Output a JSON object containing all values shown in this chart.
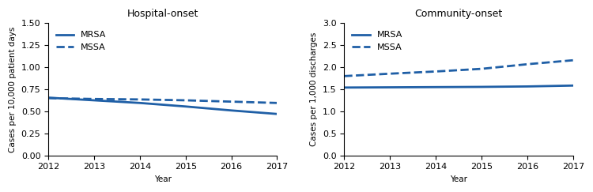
{
  "years": [
    2012,
    2013,
    2014,
    2015,
    2016,
    2017
  ],
  "hospital_mrsa": [
    0.655,
    0.625,
    0.595,
    0.555,
    0.51,
    0.47
  ],
  "hospital_mssa": [
    0.65,
    0.64,
    0.635,
    0.625,
    0.61,
    0.595
  ],
  "community_mrsa": [
    1.54,
    1.545,
    1.55,
    1.555,
    1.565,
    1.585
  ],
  "community_mssa": [
    1.8,
    1.855,
    1.905,
    1.965,
    2.07,
    2.16
  ],
  "line_color": "#1f5fa6",
  "title_hospital": "Hospital-onset",
  "title_community": "Community-onset",
  "ylabel_hospital": "Cases per 10,000 patient days",
  "ylabel_community": "Cases per 1,000 discharges",
  "xlabel": "Year",
  "ylim_hospital": [
    0,
    1.5
  ],
  "ylim_community": [
    0,
    3.0
  ],
  "yticks_hospital": [
    0,
    0.25,
    0.5,
    0.75,
    1.0,
    1.25,
    1.5
  ],
  "yticks_community": [
    0,
    0.5,
    1.0,
    1.5,
    2.0,
    2.5,
    3.0
  ],
  "legend_mrsa": "MRSA",
  "legend_mssa": "MSSA",
  "linewidth": 2.0,
  "title_fontsize": 9,
  "label_fontsize": 7.5,
  "tick_fontsize": 8,
  "legend_fontsize": 8
}
